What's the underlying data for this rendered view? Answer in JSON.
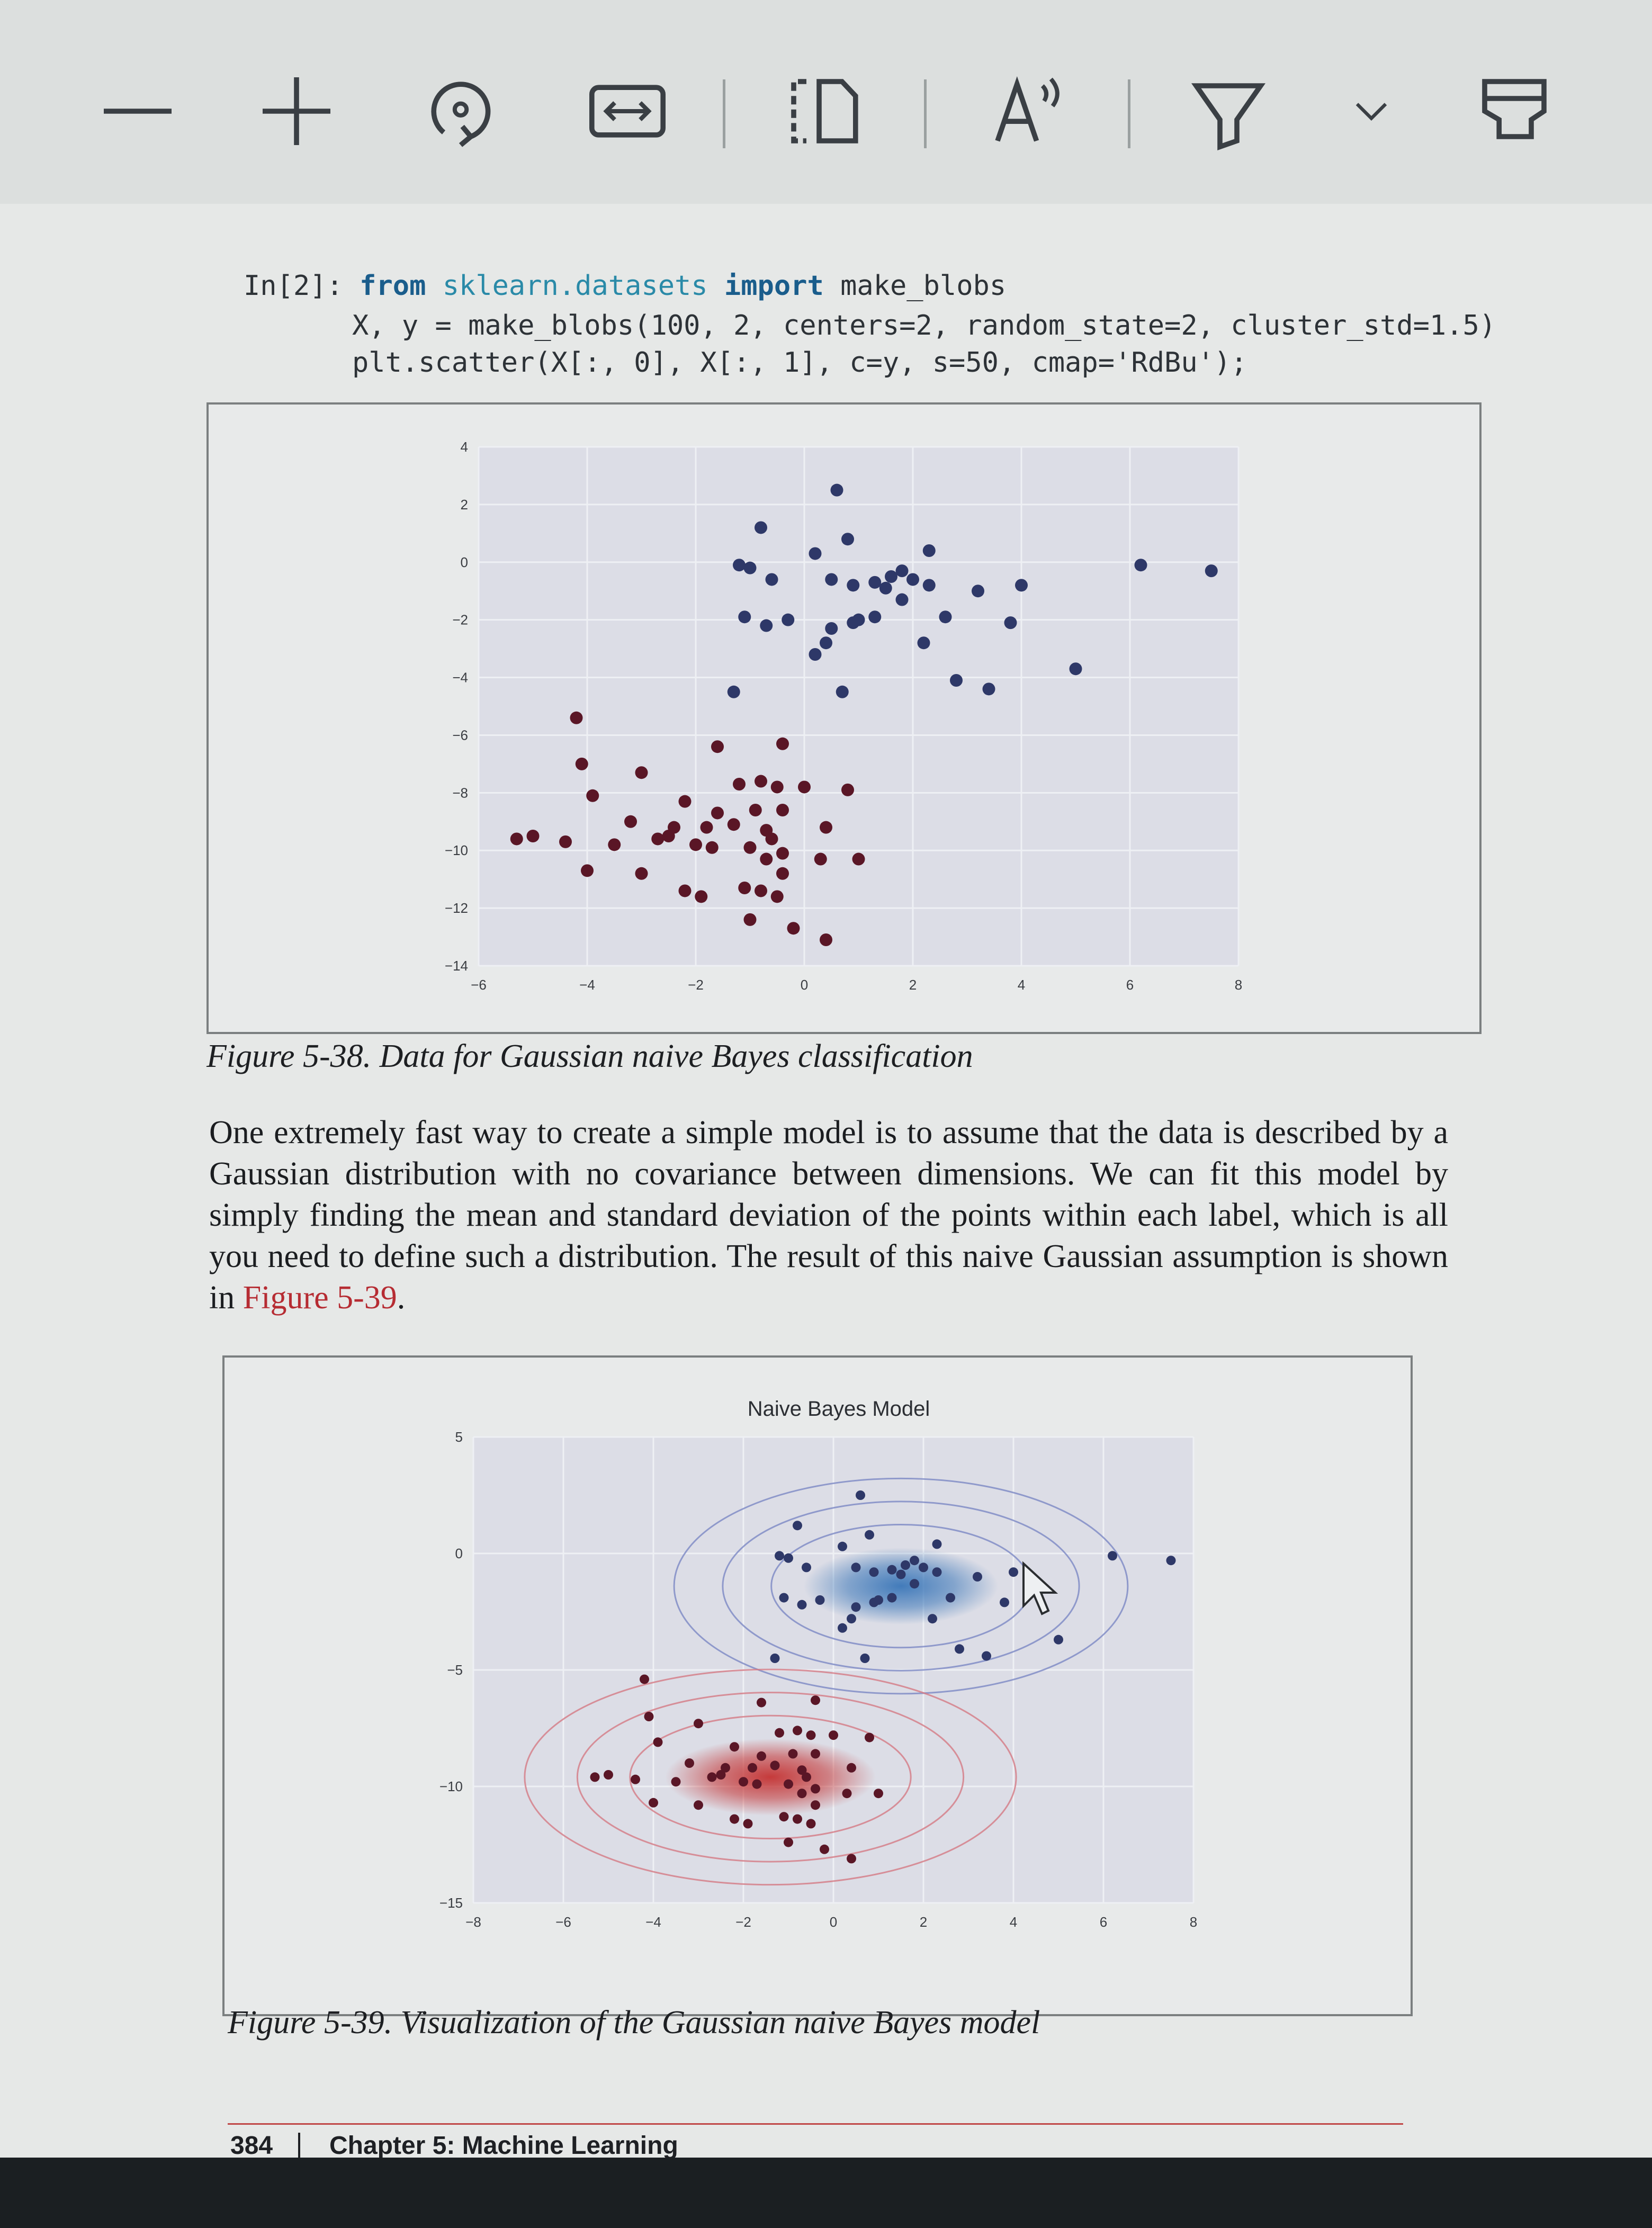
{
  "toolbar": {
    "buttons": [
      {
        "icon": "zoom-out-icon"
      },
      {
        "icon": "zoom-in-icon"
      },
      {
        "icon": "rotate-icon"
      },
      {
        "icon": "fit-width-icon"
      },
      {
        "icon": "page-view-icon"
      },
      {
        "icon": "read-aloud-icon"
      },
      {
        "icon": "highlighter-icon"
      },
      {
        "icon": "chevron-down-icon"
      },
      {
        "icon": "eraser-icon"
      }
    ]
  },
  "code": {
    "prompt": "In[2]:",
    "line1": {
      "kw1": "from",
      "mod": "sklearn.datasets",
      "kw2": "import",
      "rest": "make_blobs"
    },
    "line2": "X, y = make_blobs(100, 2, centers=2, random_state=2, cluster_std=1.5)",
    "line3": "plt.scatter(X[:, 0], X[:, 1], c=y, s=50, cmap='RdBu');"
  },
  "figure1": {
    "caption": "Figure 5-38. Data for Gaussian naive Bayes classification"
  },
  "paragraph": {
    "text_before_link": "One extremely fast way to create a simple model is to assume that the data is described by a Gaussian distribution with no covariance between dimensions. We can fit this model by simply finding the mean and standard deviation of the points within each label, which is all you need to define such a distribution. The result of this naive Gaussian assumption is shown in ",
    "link": "Figure 5-39",
    "text_after_link": "."
  },
  "figure2": {
    "caption": "Figure 5-39. Visualization of the Gaussian naive Bayes model"
  },
  "footer": {
    "page_number": "384",
    "chapter": "Chapter 5: Machine Learning"
  },
  "chart_data": [
    {
      "type": "scatter",
      "title": "",
      "xlabel": "",
      "ylabel": "",
      "xlim": [
        -6,
        8
      ],
      "ylim": [
        -14,
        4
      ],
      "xticks": [
        "−6",
        "−4",
        "−2",
        "0",
        "2",
        "4",
        "6",
        "8"
      ],
      "yticks": [
        "4",
        "2",
        "0",
        "−2",
        "−4",
        "−6",
        "−8",
        "−10",
        "−12",
        "−14"
      ],
      "grid": true,
      "colors": {
        "class0": "#2e3868",
        "class1": "#5a1626",
        "background": "#dcdde6"
      },
      "series": [
        {
          "label": 0,
          "points": [
            [
              0.6,
              2.5
            ],
            [
              -0.8,
              1.2
            ],
            [
              0.2,
              0.3
            ],
            [
              0.8,
              0.8
            ],
            [
              2.3,
              0.4
            ],
            [
              -1.0,
              -0.2
            ],
            [
              -1.2,
              -0.1
            ],
            [
              -0.6,
              -0.6
            ],
            [
              0.5,
              -0.6
            ],
            [
              0.9,
              -0.8
            ],
            [
              1.3,
              -0.7
            ],
            [
              1.6,
              -0.5
            ],
            [
              1.8,
              -0.3
            ],
            [
              2.0,
              -0.6
            ],
            [
              2.3,
              -0.8
            ],
            [
              1.5,
              -0.9
            ],
            [
              3.2,
              -1.0
            ],
            [
              4.0,
              -0.8
            ],
            [
              1.8,
              -1.3
            ],
            [
              -1.1,
              -1.9
            ],
            [
              -0.7,
              -2.2
            ],
            [
              -0.3,
              -2.0
            ],
            [
              0.5,
              -2.3
            ],
            [
              0.9,
              -2.1
            ],
            [
              1.0,
              -2.0
            ],
            [
              1.3,
              -1.9
            ],
            [
              2.6,
              -1.9
            ],
            [
              3.8,
              -2.1
            ],
            [
              2.2,
              -2.8
            ],
            [
              0.4,
              -2.8
            ],
            [
              0.2,
              -3.2
            ],
            [
              5.0,
              -3.7
            ],
            [
              2.8,
              -4.1
            ],
            [
              3.4,
              -4.4
            ],
            [
              0.7,
              -4.5
            ],
            [
              -1.3,
              -4.5
            ],
            [
              6.2,
              -0.1
            ],
            [
              7.5,
              -0.3
            ]
          ]
        },
        {
          "label": 1,
          "points": [
            [
              -1.6,
              -6.4
            ],
            [
              -0.4,
              -6.3
            ],
            [
              -4.1,
              -7.0
            ],
            [
              -3.0,
              -7.3
            ],
            [
              -1.2,
              -7.7
            ],
            [
              -0.8,
              -7.6
            ],
            [
              -0.5,
              -7.8
            ],
            [
              0.0,
              -7.8
            ],
            [
              0.8,
              -7.9
            ],
            [
              -3.9,
              -8.1
            ],
            [
              -2.2,
              -8.3
            ],
            [
              -1.6,
              -8.7
            ],
            [
              -0.9,
              -8.6
            ],
            [
              -0.4,
              -8.6
            ],
            [
              -3.2,
              -9.0
            ],
            [
              -2.4,
              -9.2
            ],
            [
              -1.8,
              -9.2
            ],
            [
              -1.3,
              -9.1
            ],
            [
              -0.7,
              -9.3
            ],
            [
              0.4,
              -9.2
            ],
            [
              -5.3,
              -9.6
            ],
            [
              -5.0,
              -9.5
            ],
            [
              -4.4,
              -9.7
            ],
            [
              -2.7,
              -9.6
            ],
            [
              -2.0,
              -9.8
            ],
            [
              -1.7,
              -9.9
            ],
            [
              -1.0,
              -9.9
            ],
            [
              -0.6,
              -9.6
            ],
            [
              -3.5,
              -9.8
            ],
            [
              -2.5,
              -9.5
            ],
            [
              -0.4,
              -10.1
            ],
            [
              -0.7,
              -10.3
            ],
            [
              0.3,
              -10.3
            ],
            [
              1.0,
              -10.3
            ],
            [
              -4.0,
              -10.7
            ],
            [
              -3.0,
              -10.8
            ],
            [
              -0.4,
              -10.8
            ],
            [
              -2.2,
              -11.4
            ],
            [
              -1.9,
              -11.6
            ],
            [
              -1.1,
              -11.3
            ],
            [
              -0.8,
              -11.4
            ],
            [
              -0.5,
              -11.6
            ],
            [
              -1.0,
              -12.4
            ],
            [
              -0.2,
              -12.7
            ],
            [
              0.4,
              -13.1
            ],
            [
              -4.2,
              -5.4
            ]
          ]
        }
      ]
    },
    {
      "type": "scatter",
      "title": "Naive Bayes Model",
      "xlabel": "",
      "ylabel": "",
      "xlim": [
        -8,
        8
      ],
      "ylim": [
        -15,
        5
      ],
      "xticks": [
        "−8",
        "−6",
        "−4",
        "−2",
        "0",
        "2",
        "4",
        "6",
        "8"
      ],
      "yticks": [
        "5",
        "0",
        "−5",
        "−10",
        "−15"
      ],
      "grid": true,
      "colors": {
        "class0_fill": "#3a76b8",
        "class1_fill": "#c43232",
        "contour0": "#7c88c4",
        "contour1": "#d47a84",
        "background": "#dcdde6"
      },
      "gaussians": [
        {
          "label": 0,
          "mean": [
            1.5,
            -1.4
          ],
          "std": [
            1.2,
            1.1
          ]
        },
        {
          "label": 1,
          "mean": [
            -1.4,
            -9.6
          ],
          "std": [
            1.3,
            1.1
          ]
        }
      ]
    }
  ]
}
